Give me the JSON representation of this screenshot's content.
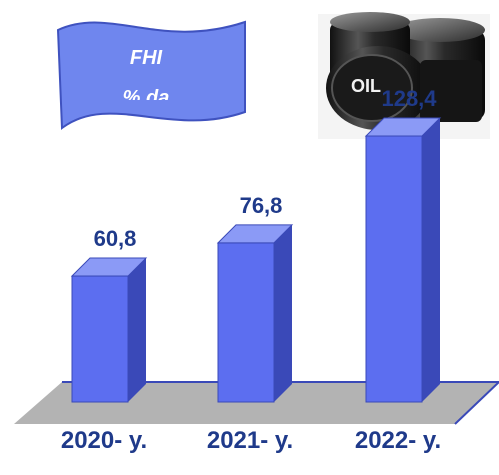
{
  "banner": {
    "line1": "FHI",
    "line2": "% da"
  },
  "oil_image": {
    "label": "OIL"
  },
  "colors": {
    "bar_front": "#5c6ef0",
    "bar_top": "#8b9af6",
    "bar_side": "#3a49b8",
    "floor": "#b3b3b3",
    "floor_edge": "#3a49b8",
    "label_text": "#1f3a8a",
    "banner_fill": "#6f86ee",
    "banner_stroke": "#3f52bf"
  },
  "chart_data": {
    "type": "bar",
    "categories": [
      "2020- y.",
      "2021- y.",
      "2022- y."
    ],
    "values": [
      60.8,
      76.8,
      128.4
    ],
    "value_labels": [
      "60,8",
      "76,8",
      "128,4"
    ],
    "ylim": [
      0,
      140
    ],
    "grid": false,
    "style": "3d"
  }
}
